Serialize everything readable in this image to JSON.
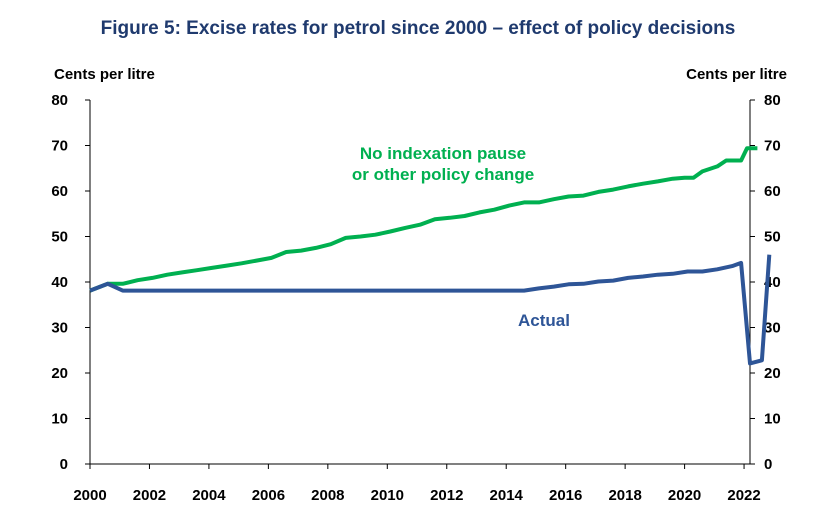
{
  "chart_data": {
    "type": "line",
    "title": "Figure 5: Excise rates for petrol since 2000 – effect of policy decisions",
    "ylabel_left": "Cents per litre",
    "ylabel_right": "Cents per litre",
    "ylim": [
      0,
      80
    ],
    "yticks": [
      "0",
      "10",
      "20",
      "30",
      "40",
      "50",
      "60",
      "70",
      "80"
    ],
    "xlim": [
      2000,
      2022.2
    ],
    "xticks": [
      "2000",
      "2002",
      "2004",
      "2006",
      "2008",
      "2010",
      "2012",
      "2014",
      "2016",
      "2018",
      "2020",
      "2022"
    ],
    "grid": false,
    "series": [
      {
        "name": "No indexation pause or other policy change",
        "label_lines": [
          "No indexation pause",
          "or other policy change"
        ],
        "color": "#00b050",
        "points": [
          [
            2000.0,
            38.1
          ],
          [
            2000.6,
            39.6
          ],
          [
            2001.1,
            39.6
          ],
          [
            2001.6,
            40.4
          ],
          [
            2002.1,
            40.9
          ],
          [
            2002.6,
            41.6
          ],
          [
            2003.1,
            42.1
          ],
          [
            2003.6,
            42.6
          ],
          [
            2004.1,
            43.1
          ],
          [
            2004.6,
            43.6
          ],
          [
            2005.1,
            44.1
          ],
          [
            2005.6,
            44.7
          ],
          [
            2006.1,
            45.3
          ],
          [
            2006.6,
            46.6
          ],
          [
            2007.1,
            46.9
          ],
          [
            2007.6,
            47.5
          ],
          [
            2008.1,
            48.3
          ],
          [
            2008.6,
            49.7
          ],
          [
            2009.1,
            50.0
          ],
          [
            2009.6,
            50.4
          ],
          [
            2010.1,
            51.1
          ],
          [
            2010.6,
            51.9
          ],
          [
            2011.1,
            52.6
          ],
          [
            2011.6,
            53.8
          ],
          [
            2012.1,
            54.1
          ],
          [
            2012.6,
            54.5
          ],
          [
            2013.1,
            55.3
          ],
          [
            2013.6,
            55.9
          ],
          [
            2014.1,
            56.8
          ],
          [
            2014.6,
            57.5
          ],
          [
            2015.1,
            57.5
          ],
          [
            2015.6,
            58.2
          ],
          [
            2016.1,
            58.8
          ],
          [
            2016.6,
            59.0
          ],
          [
            2017.1,
            59.8
          ],
          [
            2017.6,
            60.3
          ],
          [
            2018.1,
            61.0
          ],
          [
            2018.6,
            61.6
          ],
          [
            2019.1,
            62.1
          ],
          [
            2019.6,
            62.7
          ],
          [
            2020.0,
            62.9
          ],
          [
            2020.3,
            62.9
          ],
          [
            2020.6,
            64.3
          ],
          [
            2021.1,
            65.4
          ],
          [
            2021.4,
            66.7
          ],
          [
            2021.9,
            66.7
          ],
          [
            2022.1,
            69.4
          ],
          [
            2022.45,
            69.4
          ]
        ]
      },
      {
        "name": "Actual",
        "label_lines": [
          "Actual"
        ],
        "color": "#2e5597",
        "points": [
          [
            2000.0,
            38.1
          ],
          [
            2000.6,
            39.6
          ],
          [
            2001.1,
            38.1
          ],
          [
            2002.0,
            38.1
          ],
          [
            2004.0,
            38.1
          ],
          [
            2006.0,
            38.1
          ],
          [
            2008.0,
            38.1
          ],
          [
            2010.0,
            38.1
          ],
          [
            2012.0,
            38.1
          ],
          [
            2014.1,
            38.1
          ],
          [
            2014.6,
            38.1
          ],
          [
            2015.1,
            38.6
          ],
          [
            2015.6,
            39.0
          ],
          [
            2016.1,
            39.5
          ],
          [
            2016.6,
            39.6
          ],
          [
            2017.1,
            40.1
          ],
          [
            2017.6,
            40.3
          ],
          [
            2018.1,
            40.9
          ],
          [
            2018.6,
            41.2
          ],
          [
            2019.1,
            41.6
          ],
          [
            2019.6,
            41.8
          ],
          [
            2020.1,
            42.3
          ],
          [
            2020.6,
            42.3
          ],
          [
            2021.1,
            42.8
          ],
          [
            2021.6,
            43.5
          ],
          [
            2021.9,
            44.2
          ],
          [
            2022.2,
            22.1
          ],
          [
            2022.6,
            22.8
          ],
          [
            2022.85,
            46.0
          ]
        ]
      }
    ]
  }
}
